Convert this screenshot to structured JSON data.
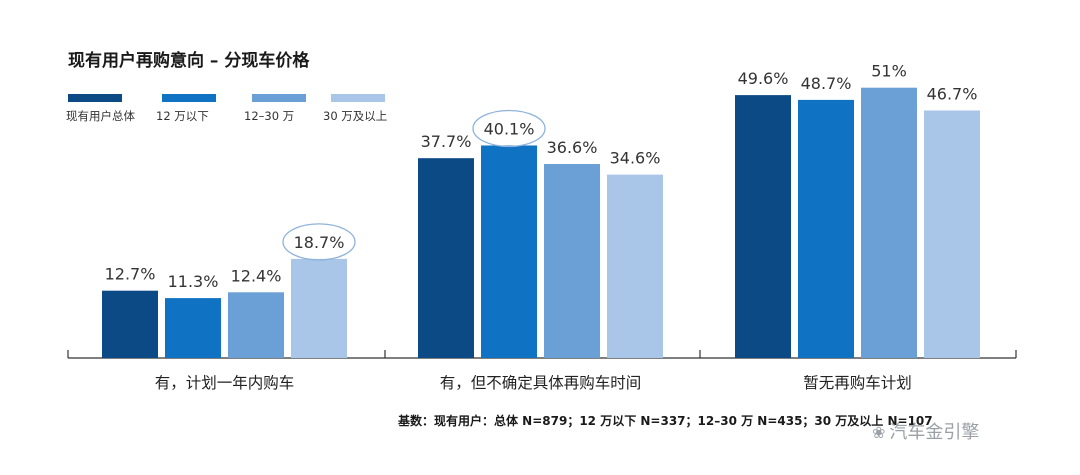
{
  "chart_data": {
    "type": "bar",
    "title": "现有用户再购意向 – 分现车价格",
    "categories": [
      "有，计划一年内购车",
      "有，但不确定具体再购车时间",
      "暂无再购车计划"
    ],
    "series": [
      {
        "name": "现有用户总体",
        "color": "#0b4a85",
        "values": [
          12.7,
          37.7,
          49.6
        ],
        "labels": [
          "12.7%",
          "37.7%",
          "49.6%"
        ]
      },
      {
        "name": "12 万以下",
        "color": "#0f72c3",
        "values": [
          11.3,
          40.1,
          48.7
        ],
        "labels": [
          "11.3%",
          "40.1%",
          "48.7%"
        ]
      },
      {
        "name": "12–30 万",
        "color": "#6aa0d6",
        "values": [
          12.4,
          36.6,
          51.0
        ],
        "labels": [
          "12.4%",
          "36.6%",
          "51%"
        ]
      },
      {
        "name": "30 万及以上",
        "color": "#a9c6e8",
        "values": [
          18.7,
          34.6,
          46.7
        ],
        "labels": [
          "18.7%",
          "34.6%",
          "46.7%"
        ]
      }
    ],
    "highlighted": [
      {
        "series": 3,
        "category": 0
      },
      {
        "series": 1,
        "category": 1
      }
    ],
    "ylim": [
      0,
      55
    ],
    "xlabel": "",
    "ylabel": "",
    "grid": false
  },
  "legend": {
    "items": [
      {
        "label": "现有用户总体",
        "color": "#0b4a85"
      },
      {
        "label": "12 万以下",
        "color": "#0f72c3"
      },
      {
        "label": "12–30 万",
        "color": "#6aa0d6"
      },
      {
        "label": "30 万及以上",
        "color": "#a9c6e8"
      }
    ]
  },
  "note": "基数：现有用户：总体 N=879；12 万以下 N=337；12–30 万 N=435；30 万及以上 N=107",
  "watermark": "汽车金引擎"
}
